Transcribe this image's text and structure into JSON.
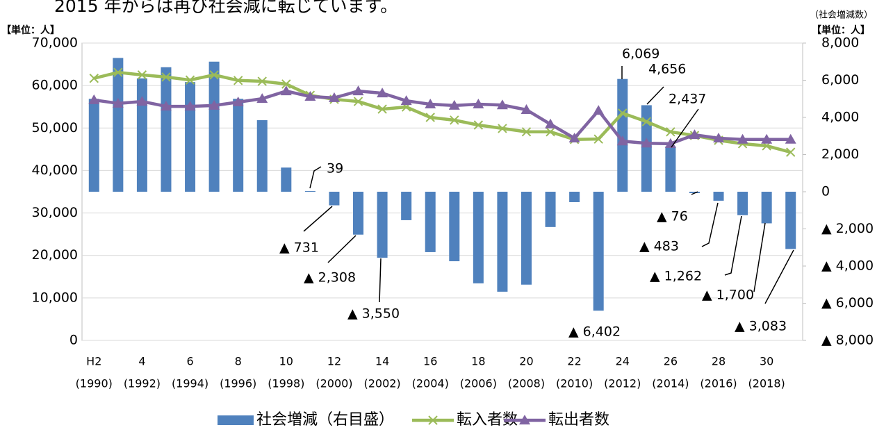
{
  "chart_data": {
    "type": "bar_line",
    "annotation": "2015 年からは再び社会減に転じています。",
    "y_unit_label": "【単位：人】",
    "y2_caption": "（社会増減数）",
    "y2_unit_label": "【単位：人】",
    "categories": [
      "H2",
      null,
      "4",
      null,
      "6",
      null,
      "8",
      null,
      "10",
      null,
      "12",
      null,
      "14",
      null,
      "16",
      null,
      "18",
      null,
      "20",
      null,
      "22",
      null,
      "24",
      null,
      "26",
      null,
      "28",
      null,
      "30",
      null
    ],
    "category_sublabels": [
      "(1990)",
      null,
      "(1992)",
      null,
      "(1994)",
      null,
      "(1996)",
      null,
      "(1998)",
      null,
      "(2000)",
      null,
      "(2002)",
      null,
      "(2004)",
      null,
      "(2006)",
      null,
      "(2008)",
      null,
      "(2010)",
      null,
      "(2012)",
      null,
      "(2014)",
      null,
      "(2016)",
      null,
      "(2018)",
      null
    ],
    "ylim": [
      0,
      70000
    ],
    "yticks": [
      0,
      {
        "value": 10000,
        "label": "10,000"
      },
      {
        "value": 20000,
        "label": "20,000"
      },
      {
        "value": 30000,
        "label": "30,000"
      },
      {
        "value": 40000,
        "label": "40,000"
      },
      {
        "value": 50000,
        "label": "50,000"
      },
      {
        "value": 60000,
        "label": "60,000"
      },
      {
        "value": 70000,
        "label": "70,000"
      }
    ],
    "y2lim": [
      -8000,
      8000
    ],
    "y2ticks": [
      {
        "value": -8000,
        "label": "▲ 8,000"
      },
      {
        "value": -6000,
        "label": "▲ 6,000"
      },
      {
        "value": -4000,
        "label": "▲ 4,000"
      },
      {
        "value": -2000,
        "label": "▲ 2,000"
      },
      0,
      {
        "value": 2000,
        "label": "2,000"
      },
      {
        "value": 4000,
        "label": "4,000"
      },
      {
        "value": 6000,
        "label": "6,000"
      },
      {
        "value": 8000,
        "label": "8,000"
      }
    ],
    "grid": true,
    "series": [
      {
        "name": "社会増減（右目盛）",
        "type": "bar",
        "axis": "y2",
        "color": "#4f81bd",
        "values": [
          5000,
          7200,
          6100,
          6700,
          5900,
          7000,
          5000,
          3850,
          1300,
          39,
          -731,
          -2308,
          -3550,
          -1530,
          -3250,
          -3740,
          -4930,
          -5380,
          -5000,
          -1900,
          -560,
          -6402,
          6069,
          4656,
          2437,
          -76,
          -483,
          -1262,
          -1700,
          -3083
        ],
        "value_labels": [
          null,
          null,
          null,
          null,
          null,
          null,
          null,
          null,
          null,
          "39",
          "▲ 731",
          "▲ 2,308",
          "▲ 3,550",
          null,
          null,
          null,
          null,
          null,
          null,
          null,
          null,
          "▲ 6,402",
          "6,069",
          "4,656",
          "2,437",
          "▲ 76",
          "▲ 483",
          "▲ 1,262",
          "▲ 1,700",
          "▲ 3,083"
        ]
      },
      {
        "name": "転入者数",
        "type": "line",
        "marker": "x",
        "color": "#9bbb59",
        "values": [
          61700,
          63100,
          62500,
          62000,
          61300,
          62500,
          61200,
          61000,
          60350,
          57700,
          56750,
          56250,
          54450,
          54950,
          52500,
          51850,
          50700,
          49900,
          49100,
          49100,
          47300,
          47400,
          53500,
          51500,
          49100,
          48250,
          47100,
          46300,
          45800,
          44300
        ]
      },
      {
        "name": "転出者数",
        "type": "line",
        "marker": "triangle",
        "color": "#8064a2",
        "values": [
          56600,
          55800,
          56250,
          55100,
          55100,
          55300,
          56100,
          56900,
          58700,
          57400,
          57100,
          58700,
          58200,
          56400,
          55600,
          55300,
          55600,
          55400,
          54300,
          50900,
          47600,
          54100,
          46900,
          46400,
          46300,
          48400,
          47600,
          47300,
          47300,
          47300
        ]
      }
    ]
  }
}
